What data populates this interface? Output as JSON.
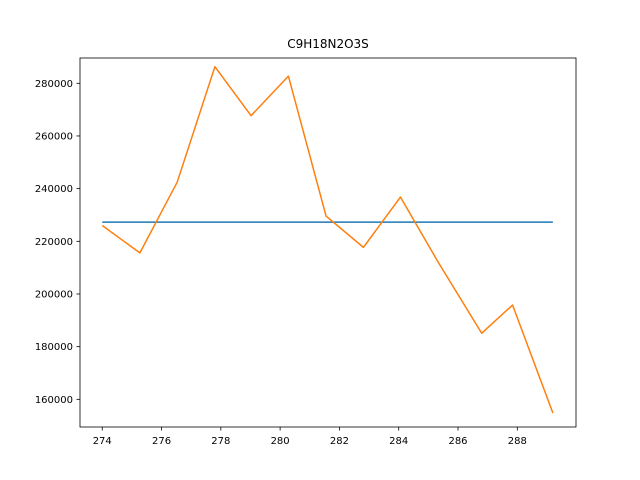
{
  "chart_data": {
    "type": "line",
    "title": "C9H18N2O3S",
    "xlabel": "",
    "ylabel": "",
    "xlim": [
      273.25,
      289.98
    ],
    "ylim": [
      149500,
      289600
    ],
    "xticks": [
      274,
      276,
      278,
      280,
      282,
      284,
      286,
      288
    ],
    "yticks": [
      160000,
      180000,
      200000,
      220000,
      240000,
      260000,
      280000
    ],
    "grid": false,
    "legend": "none",
    "series": [
      {
        "color": "#1f77b4",
        "x": [
          274.0,
          289.2
        ],
        "y": [
          227300,
          227300
        ]
      },
      {
        "color": "#ff7f0e",
        "x": [
          274.0,
          275.27,
          276.53,
          277.8,
          279.02,
          280.28,
          281.55,
          282.81,
          284.06,
          285.33,
          286.8,
          287.84,
          289.2
        ],
        "y": [
          226000,
          215600,
          242500,
          286300,
          267700,
          282700,
          229600,
          217700,
          236800,
          212100,
          185100,
          195800,
          154800
        ]
      }
    ]
  }
}
